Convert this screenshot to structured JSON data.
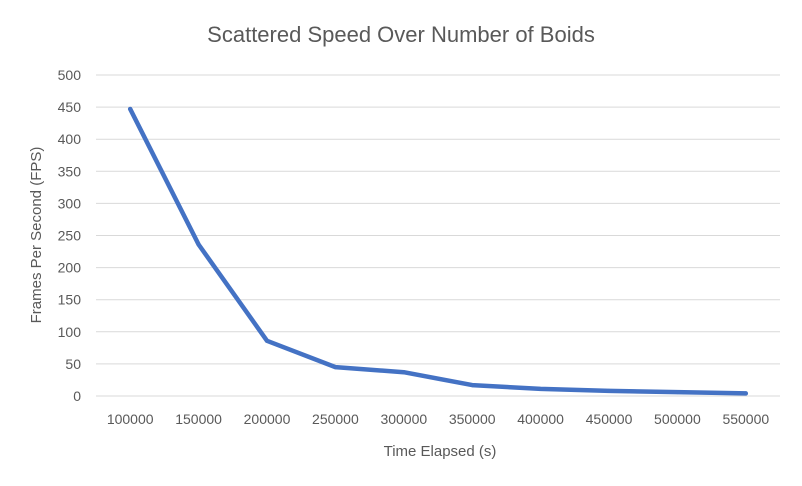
{
  "chart_data": {
    "type": "line",
    "title": "Scattered Speed Over Number of Boids",
    "xlabel": "Time Elapsed (s)",
    "ylabel": "Frames Per Second (FPS)",
    "categories": [
      "100000",
      "150000",
      "200000",
      "250000",
      "300000",
      "350000",
      "400000",
      "450000",
      "500000",
      "550000"
    ],
    "series": [
      {
        "values": [
          447,
          236,
          86,
          45,
          37,
          17,
          11,
          8,
          6,
          4
        ]
      }
    ],
    "ylim": [
      0,
      500
    ],
    "yticks": [
      0,
      50,
      100,
      150,
      200,
      250,
      300,
      350,
      400,
      450,
      500
    ],
    "grid": true,
    "legend": "none",
    "colors": {
      "line": "#4472C4",
      "grid": "#D9D9D9",
      "text": "#595959"
    }
  }
}
